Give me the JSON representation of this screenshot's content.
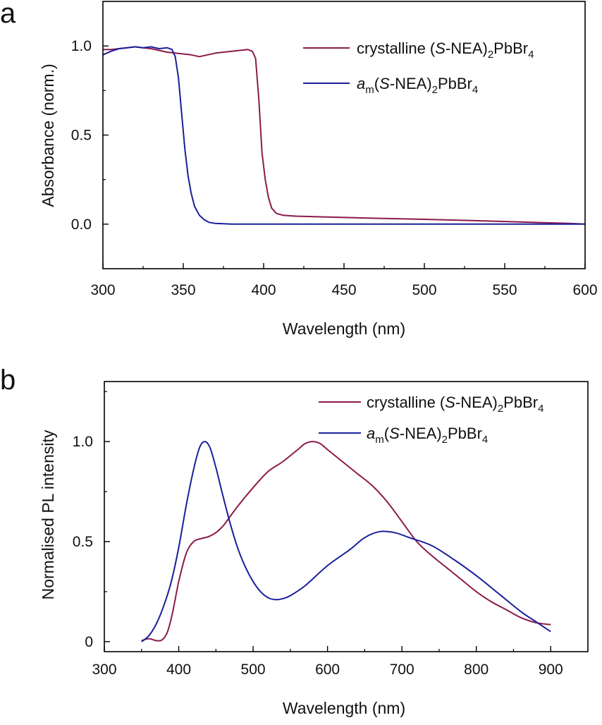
{
  "chart_data": [
    {
      "type": "line",
      "panel_label": "a",
      "xlabel": "Wavelength (nm)",
      "ylabel": "Absorbance (norm.)",
      "xlim": [
        300,
        600
      ],
      "ylim": [
        -0.25,
        1.25
      ],
      "xticks": [
        300,
        350,
        400,
        450,
        500,
        550,
        600
      ],
      "xtick_labels": [
        "300",
        "350",
        "400",
        "450",
        "500",
        "550",
        "600"
      ],
      "yticks": [
        0.0,
        0.5,
        1.0
      ],
      "ytick_labels": [
        "0.0",
        "0.5",
        "1.0"
      ],
      "legend_position": "top-right",
      "series": [
        {
          "name": "crystalline (S-NEA)2PbBr4",
          "color": "#8b1a4a",
          "x": [
            300,
            305,
            310,
            315,
            320,
            325,
            330,
            335,
            340,
            345,
            350,
            355,
            360,
            365,
            370,
            375,
            380,
            385,
            390,
            393,
            395,
            397,
            399,
            401,
            403,
            405,
            408,
            412,
            420,
            440,
            470,
            500,
            530,
            560,
            590,
            600
          ],
          "y": [
            0.98,
            0.98,
            0.985,
            0.99,
            0.995,
            0.99,
            0.985,
            0.975,
            0.965,
            0.96,
            0.955,
            0.95,
            0.94,
            0.95,
            0.96,
            0.965,
            0.97,
            0.975,
            0.98,
            0.97,
            0.93,
            0.7,
            0.4,
            0.25,
            0.15,
            0.09,
            0.06,
            0.05,
            0.045,
            0.04,
            0.033,
            0.027,
            0.02,
            0.012,
            0.004,
            0.0
          ]
        },
        {
          "name": "am(S-NEA)2PbBr4",
          "color": "#1a1f9a",
          "x": [
            300,
            305,
            310,
            315,
            320,
            325,
            330,
            335,
            340,
            343,
            345,
            347,
            349,
            351,
            353,
            355,
            357,
            360,
            363,
            366,
            370,
            375,
            380,
            400,
            500,
            600
          ],
          "y": [
            0.95,
            0.97,
            0.985,
            0.99,
            0.995,
            0.99,
            0.995,
            0.985,
            0.99,
            0.98,
            0.94,
            0.82,
            0.62,
            0.42,
            0.27,
            0.17,
            0.1,
            0.05,
            0.025,
            0.01,
            0.004,
            0.002,
            0.0,
            0.0,
            0.0,
            0.0
          ]
        }
      ]
    },
    {
      "type": "line",
      "panel_label": "b",
      "xlabel": "Wavelength (nm)",
      "ylabel": "Normalised PL intensity",
      "xlim": [
        300,
        950
      ],
      "ylim": [
        -0.05,
        1.3
      ],
      "xticks": [
        300,
        400,
        500,
        600,
        700,
        800,
        900
      ],
      "xtick_labels": [
        "300",
        "400",
        "500",
        "600",
        "700",
        "800",
        "900"
      ],
      "yticks": [
        0,
        0.5,
        1.0
      ],
      "ytick_labels": [
        "0",
        "0.5",
        "1.0"
      ],
      "legend_position": "top-right",
      "series": [
        {
          "name": "crystalline (S-NEA)2PbBr4",
          "color": "#8b1a4a",
          "x": [
            350,
            360,
            370,
            378,
            385,
            392,
            400,
            410,
            420,
            430,
            440,
            450,
            460,
            470,
            480,
            500,
            520,
            540,
            560,
            570,
            580,
            590,
            600,
            620,
            640,
            660,
            680,
            700,
            720,
            740,
            760,
            780,
            800,
            820,
            840,
            860,
            880,
            900
          ],
          "y": [
            0.005,
            0.015,
            0.005,
            0.01,
            0.05,
            0.15,
            0.3,
            0.44,
            0.5,
            0.515,
            0.525,
            0.545,
            0.58,
            0.63,
            0.68,
            0.77,
            0.85,
            0.9,
            0.96,
            0.99,
            1.0,
            0.99,
            0.96,
            0.9,
            0.84,
            0.78,
            0.7,
            0.6,
            0.5,
            0.43,
            0.37,
            0.31,
            0.25,
            0.2,
            0.16,
            0.12,
            0.095,
            0.085
          ]
        },
        {
          "name": "am(S-NEA)2PbBr4",
          "color": "#1a1f9a",
          "x": [
            350,
            360,
            370,
            380,
            390,
            400,
            410,
            420,
            428,
            435,
            442,
            450,
            460,
            470,
            480,
            490,
            500,
            510,
            520,
            530,
            540,
            550,
            570,
            600,
            630,
            650,
            670,
            690,
            710,
            740,
            770,
            800,
            830,
            860,
            880,
            900
          ],
          "y": [
            0.0,
            0.03,
            0.09,
            0.18,
            0.3,
            0.47,
            0.68,
            0.86,
            0.97,
            1.0,
            0.97,
            0.87,
            0.72,
            0.58,
            0.46,
            0.37,
            0.3,
            0.25,
            0.22,
            0.21,
            0.215,
            0.23,
            0.28,
            0.38,
            0.46,
            0.52,
            0.55,
            0.545,
            0.52,
            0.48,
            0.41,
            0.33,
            0.24,
            0.15,
            0.1,
            0.05
          ]
        }
      ]
    }
  ],
  "legend_text": {
    "crystalline_prefix": "crystalline (",
    "italic_S": "S",
    "nea_middle": "-NEA)",
    "sub_2": "2",
    "pbbr": "PbBr",
    "sub_4": "4",
    "am_a": "a",
    "am_m": "m",
    "open_paren": "("
  }
}
